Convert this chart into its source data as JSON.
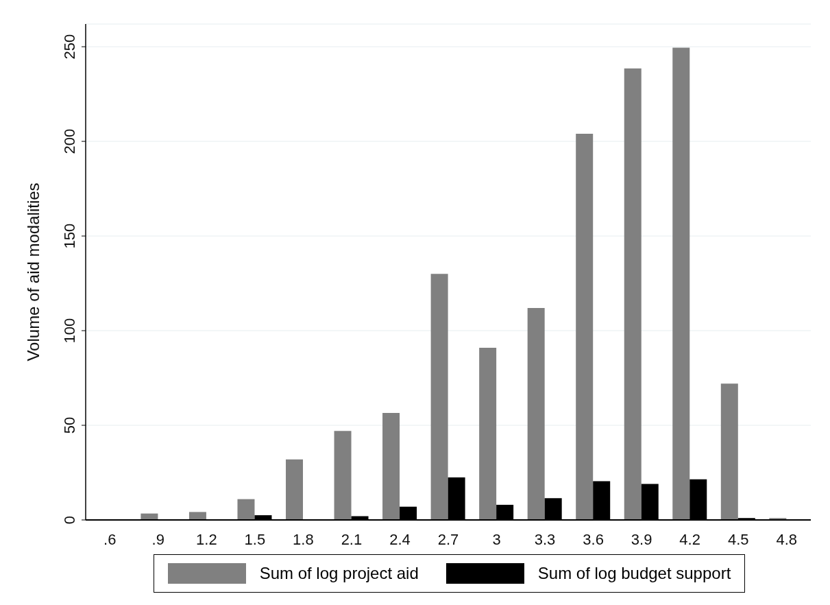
{
  "chart_data": {
    "type": "bar",
    "ylabel": "Volume of aid modalities",
    "categories": [
      ".6",
      ".9",
      "1.2",
      "1.5",
      "1.8",
      "2.1",
      "2.4",
      "2.7",
      "3",
      "3.3",
      "3.6",
      "3.9",
      "4.2",
      "4.5",
      "4.8"
    ],
    "series": [
      {
        "name": "Sum of log project aid",
        "color": "#808080",
        "values": [
          0,
          3.4,
          4.2,
          11,
          32,
          47,
          56.5,
          130,
          91,
          112,
          204,
          238.5,
          249.5,
          72,
          1
        ]
      },
      {
        "name": "Sum of log budget support",
        "color": "#000000",
        "values": [
          0,
          0,
          0,
          2.5,
          0,
          2,
          7,
          22.5,
          8,
          11.5,
          20.5,
          19,
          21.5,
          1,
          0
        ]
      }
    ],
    "ylim": [
      0,
      262
    ],
    "yticks": [
      0,
      50,
      100,
      150,
      200,
      250
    ],
    "grid": "y",
    "legend": "bottom"
  }
}
